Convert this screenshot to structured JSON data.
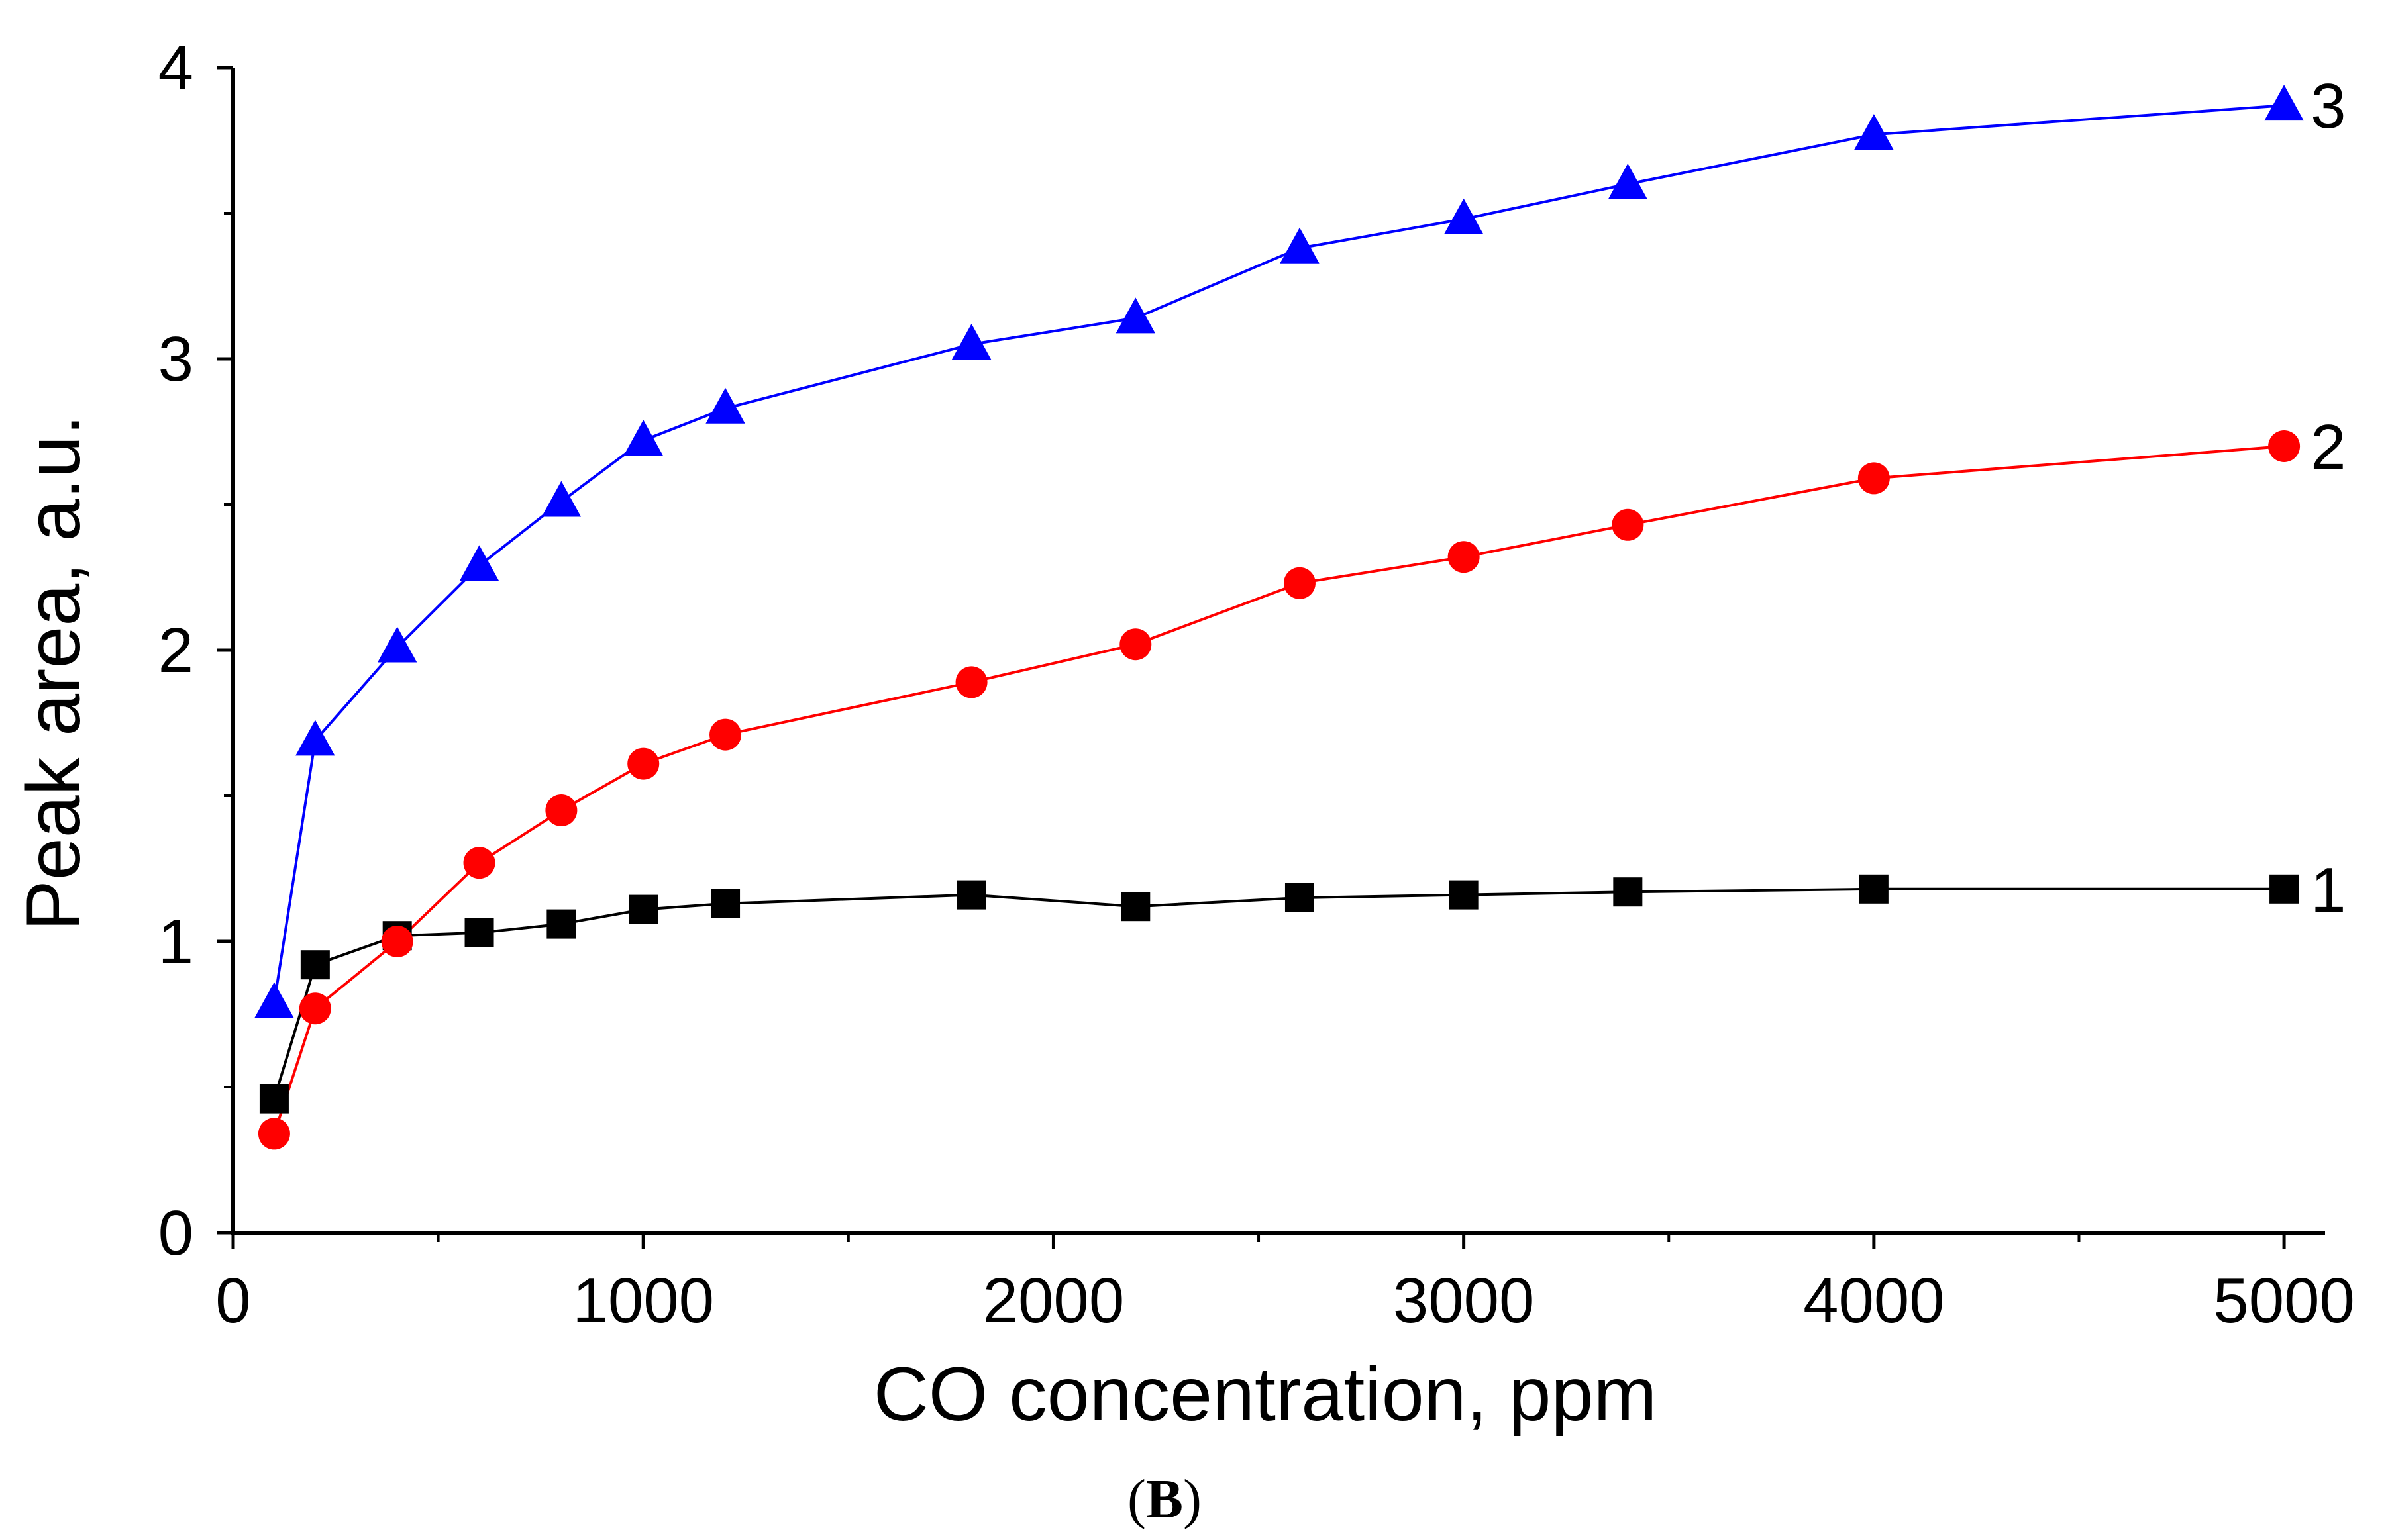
{
  "chart_data": {
    "type": "line",
    "title": "",
    "panel_label": {
      "open": "(",
      "letter": "B",
      "close": ")"
    },
    "xlabel": "CO concentration, ppm",
    "ylabel": "Peak area, a.u.",
    "xlim": [
      0,
      5100
    ],
    "ylim": [
      0,
      4
    ],
    "xticks": [
      0,
      1000,
      2000,
      3000,
      4000,
      5000
    ],
    "xtick_labels": [
      "0",
      "1000",
      "2000",
      "3000",
      "4000",
      "5000"
    ],
    "xminor": [
      500,
      1500,
      2500,
      3500,
      4500
    ],
    "yticks": [
      0,
      1,
      2,
      3,
      4
    ],
    "ytick_labels": [
      "0",
      "1",
      "2",
      "3",
      "4"
    ],
    "yminor": [
      0.5,
      1.5,
      2.5,
      3.5
    ],
    "grid": false,
    "series": [
      {
        "name": "1",
        "color": "#000000",
        "marker": "square",
        "x": [
          100,
          200,
          400,
          600,
          800,
          1000,
          1200,
          1800,
          2200,
          2600,
          3000,
          3400,
          4000,
          5000
        ],
        "values": [
          0.46,
          0.92,
          1.02,
          1.03,
          1.06,
          1.11,
          1.13,
          1.16,
          1.12,
          1.15,
          1.16,
          1.17,
          1.18,
          1.18
        ]
      },
      {
        "name": "2",
        "color": "#ff0000",
        "marker": "circle",
        "x": [
          100,
          200,
          400,
          600,
          800,
          1000,
          1200,
          1800,
          2200,
          2600,
          3000,
          3400,
          4000,
          5000
        ],
        "values": [
          0.34,
          0.77,
          1.0,
          1.27,
          1.45,
          1.61,
          1.71,
          1.89,
          2.02,
          2.23,
          2.32,
          2.43,
          2.59,
          2.7
        ]
      },
      {
        "name": "3",
        "color": "#0000ff",
        "marker": "triangle",
        "x": [
          100,
          200,
          400,
          600,
          800,
          1000,
          1200,
          1800,
          2200,
          2600,
          3000,
          3400,
          4000,
          5000
        ],
        "values": [
          0.79,
          1.69,
          2.01,
          2.29,
          2.51,
          2.72,
          2.83,
          3.05,
          3.14,
          3.38,
          3.48,
          3.6,
          3.77,
          3.87
        ]
      }
    ]
  }
}
